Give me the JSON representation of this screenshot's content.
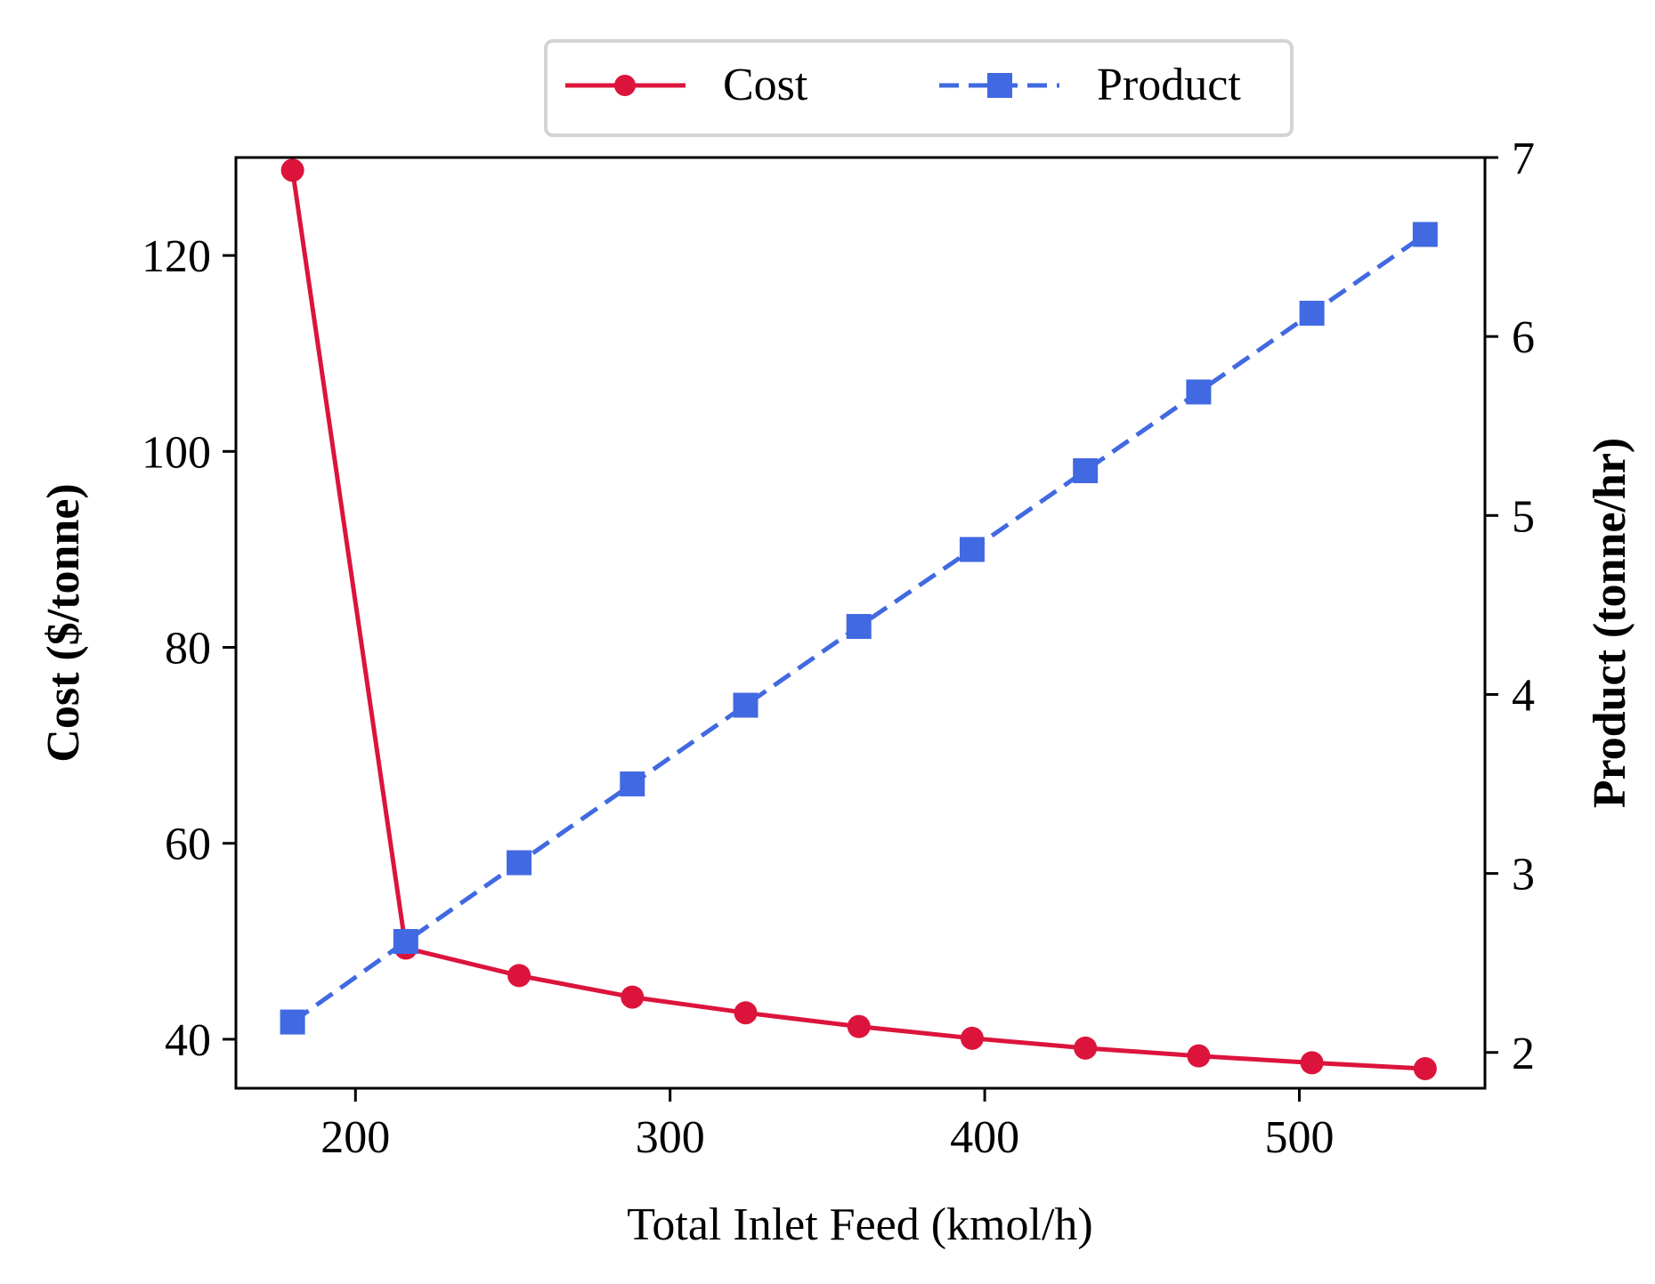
{
  "chart_data": {
    "type": "line",
    "x": [
      180,
      216,
      252,
      288,
      324,
      360,
      396,
      432,
      468,
      504,
      540
    ],
    "series": [
      {
        "name": "Cost",
        "axis": "left",
        "color": "#dc143c",
        "marker": "circle",
        "linestyle": "solid",
        "values": [
          128.7,
          49.3,
          46.5,
          44.3,
          42.7,
          41.3,
          40.1,
          39.1,
          38.3,
          37.6,
          37.0
        ]
      },
      {
        "name": "Product",
        "axis": "right",
        "color": "#4169e1",
        "marker": "square",
        "linestyle": "dashed",
        "values": [
          2.17,
          2.62,
          3.06,
          3.5,
          3.94,
          4.38,
          4.81,
          5.25,
          5.69,
          6.13,
          6.57
        ]
      }
    ],
    "xlabel": "Total Inlet Feed (kmol/h)",
    "ylabel_left": "Cost ($/tonne)",
    "ylabel_right": "Product (tonne/hr)",
    "xlim": [
      162,
      559
    ],
    "ylim_left": [
      35,
      130
    ],
    "ylim_right": [
      1.8,
      7
    ],
    "xticks": [
      "200",
      "300",
      "400",
      "500"
    ],
    "yticks_left": [
      "40",
      "60",
      "80",
      "100",
      "120"
    ],
    "yticks_right": [
      "2",
      "3",
      "4",
      "5",
      "6",
      "7"
    ],
    "legend_position": "top-center"
  }
}
